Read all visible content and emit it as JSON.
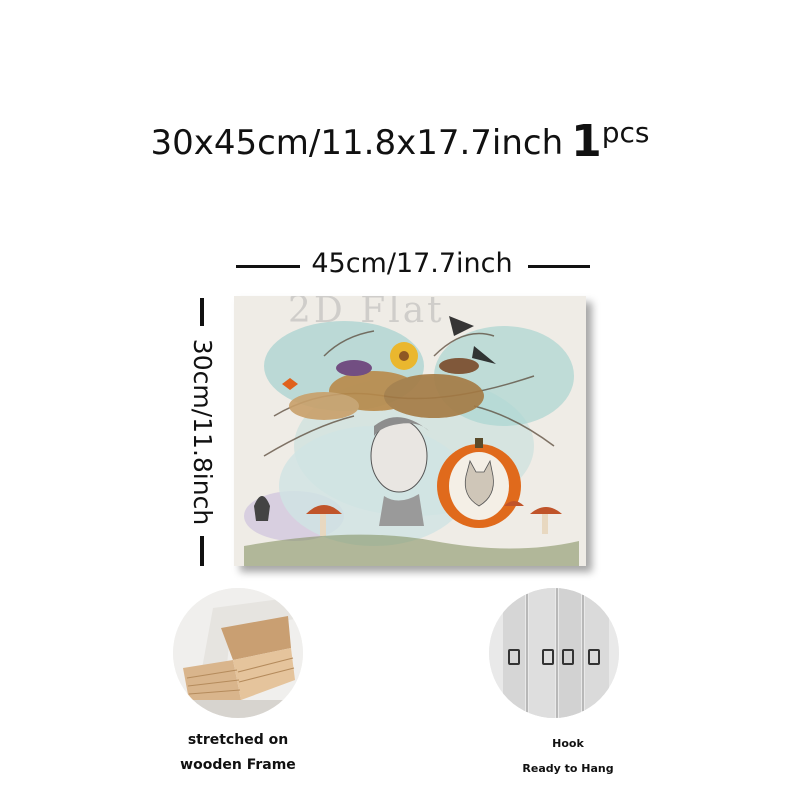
{
  "title": {
    "dimensions": "30x45cm/11.8x17.7inch",
    "quantity": "1",
    "unit": "pcs"
  },
  "canvas": {
    "width_label": "45cm/17.7inch",
    "height_label": "30cm/11.8inch",
    "watermark": "2D Flat"
  },
  "features": [
    {
      "lines": [
        "stretched on",
        "wooden Frame"
      ],
      "icon": "wooden-frame-corner"
    },
    {
      "lines": [
        "Hook",
        "Ready to Hang"
      ],
      "icon": "hanging-hook"
    }
  ],
  "colors": {
    "text": "#111111",
    "canvas_bg": "#efece6",
    "pumpkin": "#e06a1c",
    "teal": "#6fb9b8",
    "wood": "#d9b58c"
  }
}
